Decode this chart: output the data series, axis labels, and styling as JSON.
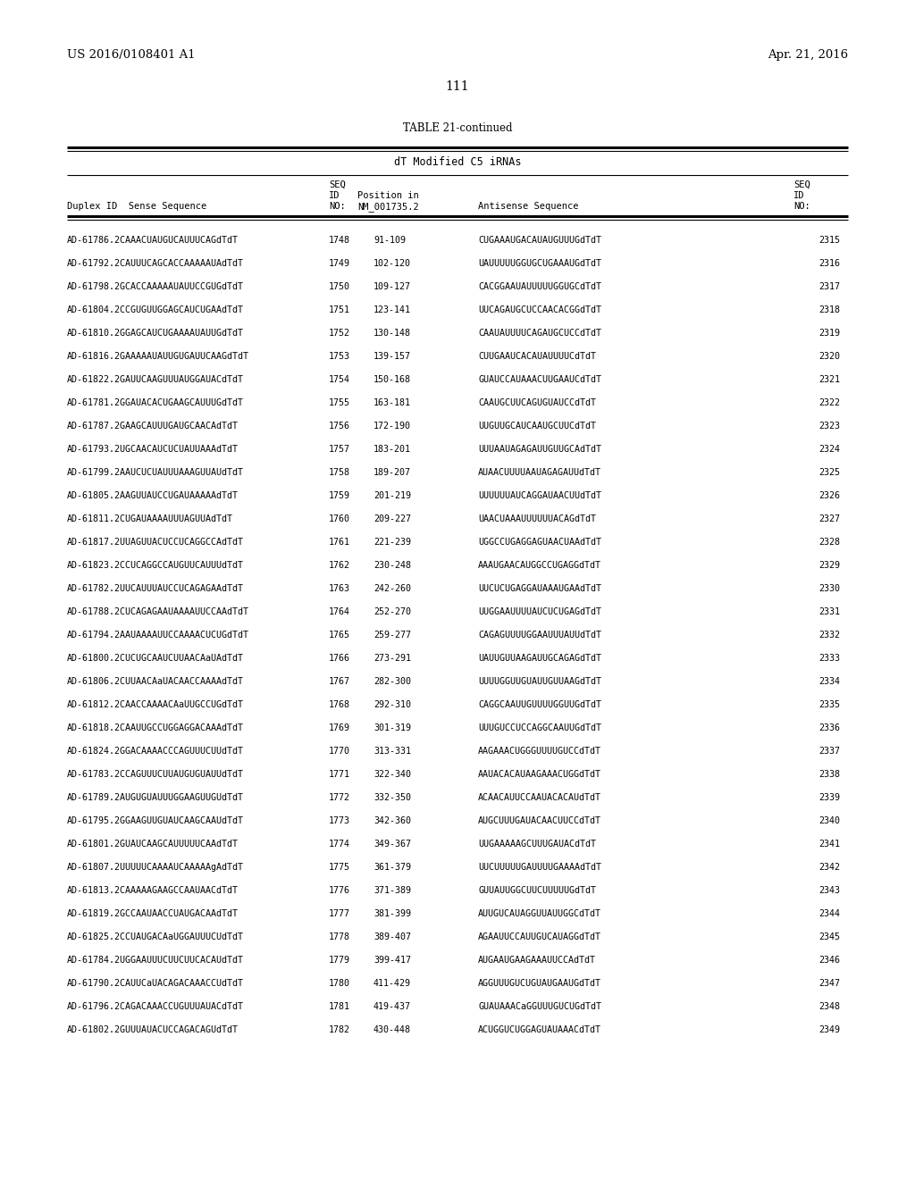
{
  "header_left": "US 2016/0108401 A1",
  "header_right": "Apr. 21, 2016",
  "page_number": "111",
  "table_title": "TABLE 21-continued",
  "table_subtitle": "dT Modified C5 iRNAs",
  "rows": [
    [
      "AD-61786.2CAAACUAUGUCAUUUCAGdTdT",
      "1748",
      "91-109",
      "CUGAAAUGACAUAUGUUUGdTdT",
      "2315"
    ],
    [
      "AD-61792.2CAUUUCAGCACCAAAAAUAdTdT",
      "1749",
      "102-120",
      "UAUUUUUGGUGCUGAAAUGdTdT",
      "2316"
    ],
    [
      "AD-61798.2GCACCAAAAAUAUUCCGUGdTdT",
      "1750",
      "109-127",
      "CACGGAAUAUUUUUGGUGCdTdT",
      "2317"
    ],
    [
      "AD-61804.2CCGUGUUGGAGCAUCUGAAdTdT",
      "1751",
      "123-141",
      "UUCAGAUGCUCCAACACGGdTdT",
      "2318"
    ],
    [
      "AD-61810.2GGAGCAUCUGAAAAUAUUGdTdT",
      "1752",
      "130-148",
      "CAAUAUUUUCAGAUGCUCCdTdT",
      "2319"
    ],
    [
      "AD-61816.2GAAAAAUAUUGUGAUUCAAGdTdT",
      "1753",
      "139-157",
      "CUUGAAUCACAUAUUUUCdTdT",
      "2320"
    ],
    [
      "AD-61822.2GAUUCAAGUUUAUGGAUACdTdT",
      "1754",
      "150-168",
      "GUAUCCAUAAACUUGAAUCdTdT",
      "2321"
    ],
    [
      "AD-61781.2GGAUACACUGAAGCAUUUGdTdT",
      "1755",
      "163-181",
      "CAAUGCUUCAGUGUAUCCdTdT",
      "2322"
    ],
    [
      "AD-61787.2GAAGCAUUUGAUGCAACAdTdT",
      "1756",
      "172-190",
      "UUGUUGCAUCAAUGCUUCdTdT",
      "2323"
    ],
    [
      "AD-61793.2UGCAACAUCUCUAUUAAAdTdT",
      "1757",
      "183-201",
      "UUUAAUAGAGAUUGUUGCAdTdT",
      "2324"
    ],
    [
      "AD-61799.2AAUCUCUAUUUAAAGUUAUdTdT",
      "1758",
      "189-207",
      "AUAACUUUUAAUAGAGAUUdTdT",
      "2325"
    ],
    [
      "AD-61805.2AAGUUAUCCUGAUAAAAAdTdT",
      "1759",
      "201-219",
      "UUUUUUAUCAGGAUAACUUdTdT",
      "2326"
    ],
    [
      "AD-61811.2CUGAUAAAAUUUAGUUAdTdT",
      "1760",
      "209-227",
      "UAACUAAAUUUUUUACAGdTdT",
      "2327"
    ],
    [
      "AD-61817.2UUAGUUACUCCUCAGGCCAdTdT",
      "1761",
      "221-239",
      "UGGCCUGAGGAGUAACUAAdTdT",
      "2328"
    ],
    [
      "AD-61823.2CCUCAGGCCAUGUUCAUUUdTdT",
      "1762",
      "230-248",
      "AAAUGAACAUGGCCUGAGGdTdT",
      "2329"
    ],
    [
      "AD-61782.2UUCAUUUAUCCUCAGAGAAdTdT",
      "1763",
      "242-260",
      "UUCUCUGAGGAUAAAUGAAdTdT",
      "2330"
    ],
    [
      "AD-61788.2CUCAGAGAAUAAAAUUCCAAdTdT",
      "1764",
      "252-270",
      "UUGGAAUUUUAUCUCUGAGdTdT",
      "2331"
    ],
    [
      "AD-61794.2AAUAAAAUUCCAAAACUCUGdTdT",
      "1765",
      "259-277",
      "CAGAGUUUUGGAAUUUAUUdTdT",
      "2332"
    ],
    [
      "AD-61800.2CUCUGCAAUCUUAACAaUAdTdT",
      "1766",
      "273-291",
      "UAUUGUUAAGAUUGCAGAGdTdT",
      "2333"
    ],
    [
      "AD-61806.2CUUAACAaUACAACCAAAAdTdT",
      "1767",
      "282-300",
      "UUUUGGUUGUAUUGUUAAGdTdT",
      "2334"
    ],
    [
      "AD-61812.2CAACCAAAACAaUUGCCUGdTdT",
      "1768",
      "292-310",
      "CAGGCAAUUGUUUUGGUUGdTdT",
      "2335"
    ],
    [
      "AD-61818.2CAAUUGCCUGGAGGACAAAdTdT",
      "1769",
      "301-319",
      "UUUGUCCUCCAGGCAAUUGdTdT",
      "2336"
    ],
    [
      "AD-61824.2GGACAAAACCCAGUUUCUUdTdT",
      "1770",
      "313-331",
      "AAGAAACUGGGUUUUGUCCdTdT",
      "2337"
    ],
    [
      "AD-61783.2CCAGUUUCUUAUGUGUAUUdTdT",
      "1771",
      "322-340",
      "AAUACACAUAAGAAACUGGdTdT",
      "2338"
    ],
    [
      "AD-61789.2AUGUGUAUUUGGAAGUUGUdTdT",
      "1772",
      "332-350",
      "ACAACAUUCCAAUACACAUdTdT",
      "2339"
    ],
    [
      "AD-61795.2GGAAGUUGUAUCAAGCAAUdTdT",
      "1773",
      "342-360",
      "AUGCUUUGAUACAACUUCCdTdT",
      "2340"
    ],
    [
      "AD-61801.2GUAUCAAGCAUUUUUCAAdTdT",
      "1774",
      "349-367",
      "UUGAAAAAGCUUUGAUACdTdT",
      "2341"
    ],
    [
      "AD-61807.2UUUUUCAAAAUCAAAAAgAdTdT",
      "1775",
      "361-379",
      "UUCUUUUUGAUUUUGAAAAdTdT",
      "2342"
    ],
    [
      "AD-61813.2CAAAAAGAAGCCAAUAACdTdT",
      "1776",
      "371-389",
      "GUUAUUGGCUUCUUUUUGdTdT",
      "2343"
    ],
    [
      "AD-61819.2GCCAAUAACCUAUGACAAdTdT",
      "1777",
      "381-399",
      "AUUGUCAUAGGUUAUUGGCdTdT",
      "2344"
    ],
    [
      "AD-61825.2CCUAUGACAaUGGAUUUCUdTdT",
      "1778",
      "389-407",
      "AGAAUUCCAUUGUCAUAGGdTdT",
      "2345"
    ],
    [
      "AD-61784.2UGGAAUUUCUUCUUCACAUdTdT",
      "1779",
      "399-417",
      "AUGAAUGAAGAAAUUCCAdTdT",
      "2346"
    ],
    [
      "AD-61790.2CAUUCaUACAGACAAACCUdTdT",
      "1780",
      "411-429",
      "AGGUUUGUCUGUAUGAAUGdTdT",
      "2347"
    ],
    [
      "AD-61796.2CAGACAAACCUGUUUAUACdTdT",
      "1781",
      "419-437",
      "GUAUAAACaGGUUUGUCUGdTdT",
      "2348"
    ],
    [
      "AD-61802.2GUUUAUACUCCAGACAGUdTdT",
      "1782",
      "430-448",
      "ACUGGUCUGGAGUAUAAACdTdT",
      "2349"
    ]
  ],
  "bg_color": "#ffffff",
  "text_color": "#000000"
}
